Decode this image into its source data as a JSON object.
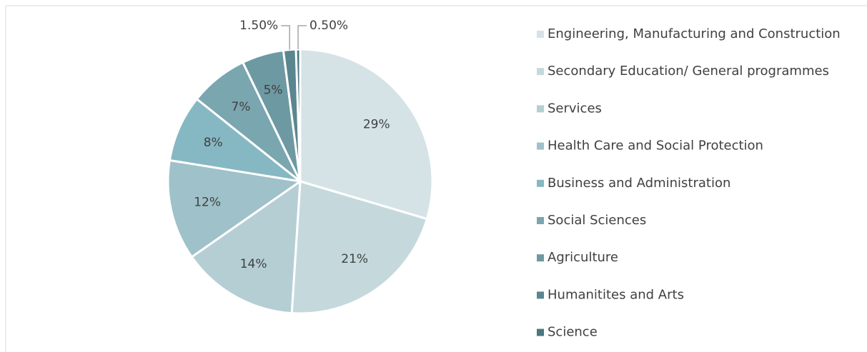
{
  "chart_data": {
    "type": "pie",
    "categories": [
      "Engineering, Manufacturing and Construction",
      "Secondary Education/ General programmes",
      "Services",
      "Health Care and Social Protection",
      "Business and Administration",
      "Social Sciences",
      "Agriculture",
      "Humanitites and Arts",
      "Science"
    ],
    "values": [
      29,
      21,
      14,
      12,
      8,
      7,
      5,
      1.5,
      0.5
    ],
    "value_labels": [
      "29%",
      "21%",
      "14%",
      "12%",
      "8%",
      "7%",
      "5%",
      "1.50%",
      "0.50%"
    ],
    "colors": [
      "#d5e3e7",
      "#c5d9dd",
      "#b4ced4",
      "#9fc1c9",
      "#86b8c3",
      "#7aa6b0",
      "#6d99a2",
      "#5a868f",
      "#4a7780"
    ],
    "legend": "right"
  }
}
